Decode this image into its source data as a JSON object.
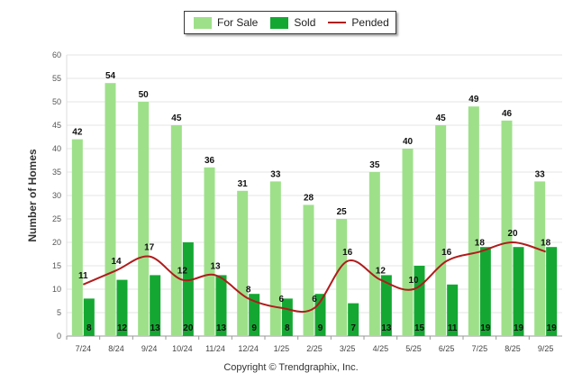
{
  "chart_data": {
    "type": "bar",
    "title": "",
    "xlabel": "",
    "ylabel": "Number of Homes",
    "ylim": [
      0,
      60
    ],
    "yticks": [
      0,
      5,
      10,
      15,
      20,
      25,
      30,
      35,
      40,
      45,
      50,
      55,
      60
    ],
    "grid": true,
    "legend_position": "top-center",
    "categories": [
      "7/24",
      "8/24",
      "9/24",
      "10/24",
      "11/24",
      "12/24",
      "1/25",
      "2/25",
      "3/25",
      "4/25",
      "5/25",
      "6/25",
      "7/25",
      "8/25",
      "9/25"
    ],
    "series": [
      {
        "name": "For Sale",
        "kind": "bar",
        "color": "#9ee08a",
        "values": [
          42,
          54,
          50,
          45,
          36,
          31,
          33,
          28,
          25,
          35,
          40,
          45,
          49,
          46,
          33
        ]
      },
      {
        "name": "Sold",
        "kind": "bar",
        "color": "#14a832",
        "values": [
          8,
          12,
          13,
          20,
          13,
          9,
          8,
          9,
          7,
          13,
          15,
          11,
          19,
          19,
          19
        ]
      },
      {
        "name": "Pended",
        "kind": "line",
        "color": "#b01c1c",
        "values": [
          11,
          14,
          17,
          12,
          13,
          8,
          6,
          6,
          16,
          12,
          10,
          16,
          18,
          20,
          18
        ]
      }
    ]
  },
  "copyright": "Copyright © Trendgraphix, Inc."
}
